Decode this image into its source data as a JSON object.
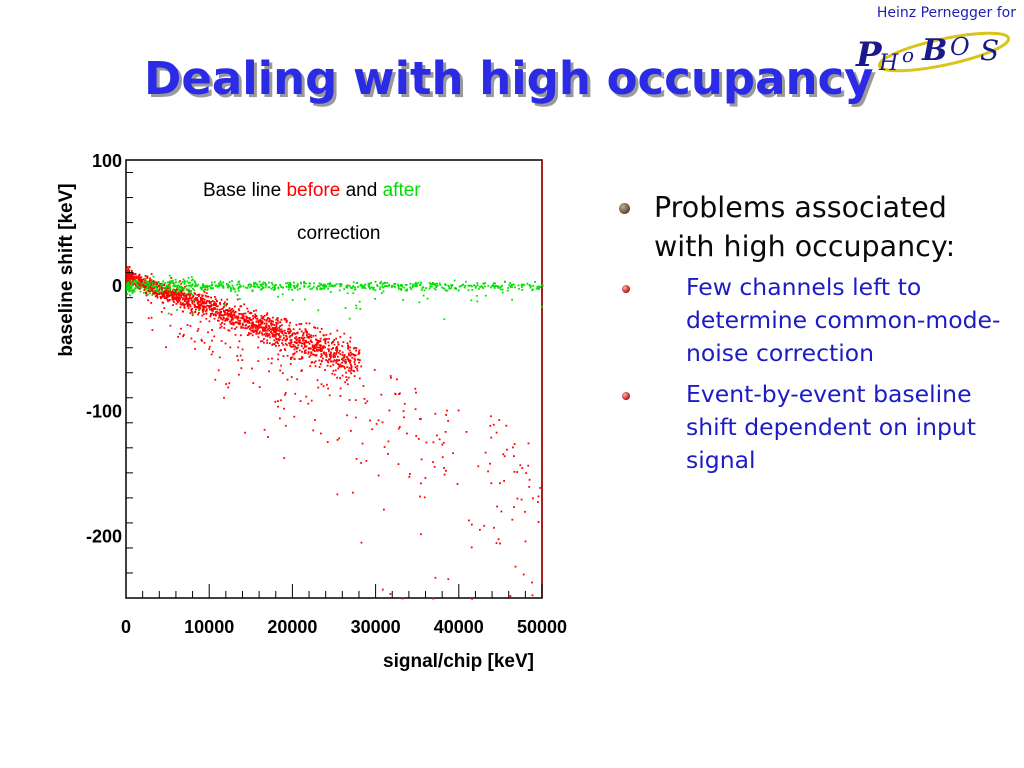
{
  "header": {
    "credit": "Heinz Pernegger for",
    "logo_text": "PHOBOS"
  },
  "slide": {
    "title": "Dealing with high occupancy"
  },
  "chart_data": {
    "type": "scatter",
    "xlabel": "signal/chip [keV]",
    "ylabel": "baseline shift [keV]",
    "xlim": [
      0,
      50000
    ],
    "ylim": [
      -250,
      100
    ],
    "x_ticks": [
      "0",
      "10000",
      "20000",
      "30000",
      "40000",
      "50000"
    ],
    "y_ticks": [
      "100",
      "0",
      "-100",
      "-200"
    ],
    "y_tick_values": [
      100,
      0,
      -100,
      -200
    ],
    "annotation": {
      "line1_prefix": "Base line ",
      "before": "before",
      "and": " and ",
      "after": "after",
      "line2": "correction"
    },
    "series": [
      {
        "color": "#ff0000",
        "description": "before correction: baseline shift falls roughly linearly with signal, dense band from (0,10) to (25000,-55), sparse scatter down to -250",
        "band_x": [
          0,
          4000,
          8000,
          12000,
          16000,
          20000,
          24000,
          28000
        ],
        "band_y": [
          8,
          -3,
          -12,
          -22,
          -32,
          -42,
          -52,
          -62
        ],
        "sparse_x_range": [
          2000,
          50000
        ],
        "sparse_y_range": [
          -250,
          -20
        ]
      },
      {
        "color": "#00e000",
        "description": "after correction: baseline shift flat near 0",
        "x_range": [
          0,
          50000
        ],
        "y_mean": 0,
        "y_spread": 3
      }
    ],
    "grid": false
  },
  "bullets": {
    "main": "Problems associated with high occupancy:",
    "sub": [
      "Few channels left to determine common-mode-noise correction",
      "Event-by-event baseline shift dependent on input signal"
    ]
  },
  "colors": {
    "title": "#2b2be6",
    "sub_bullet_text": "#1c1cc4",
    "before": "#ff0000",
    "after": "#00e000"
  }
}
